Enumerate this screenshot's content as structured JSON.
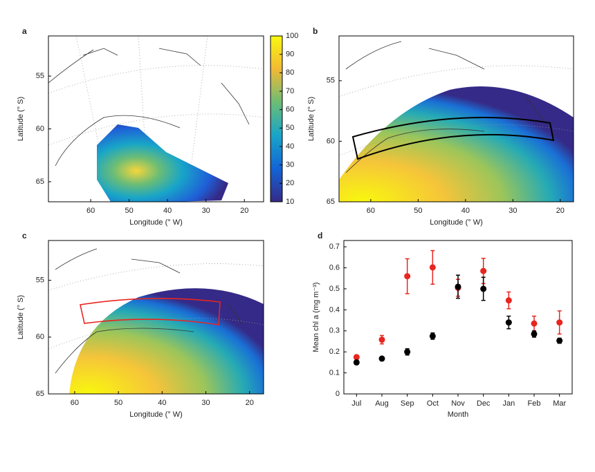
{
  "chart_data": [
    {
      "type": "map",
      "label": "a",
      "xlabel": "Longitude (° W)",
      "ylabel": "Latitude (° S)",
      "xlim": [
        71,
        15
      ],
      "ylim": [
        66.9,
        51.2
      ],
      "xticks": [
        60,
        50,
        40,
        30,
        20
      ],
      "yticks": [
        55,
        60,
        65
      ],
      "colorbar": {
        "lim": [
          10,
          100
        ],
        "ticks": [
          10,
          20,
          30,
          40,
          50,
          60,
          70,
          80,
          90,
          100
        ]
      }
    },
    {
      "type": "map",
      "label": "b",
      "xlabel": "Longitude (° W)",
      "ylabel": "Latitude (° S)",
      "xlim": [
        66.7,
        17.2
      ],
      "ylim": [
        65,
        51.3
      ],
      "xticks": [
        60,
        50,
        40,
        30,
        20
      ],
      "yticks": [
        55,
        60,
        65
      ]
    },
    {
      "type": "map",
      "label": "c",
      "xlabel": "Longitude (° W)",
      "ylabel": "Latitude (° S)",
      "xlim": [
        66,
        16.8
      ],
      "ylim": [
        65,
        51.5
      ],
      "xticks": [
        60,
        50,
        40,
        30,
        20
      ],
      "yticks": [
        55,
        60,
        65
      ]
    },
    {
      "type": "errorbar",
      "label": "d",
      "xlabel": "Month",
      "ylabel": "Mean chl a (mg m⁻³)",
      "categories": [
        "Jul",
        "Aug",
        "Sep",
        "Oct",
        "Nov",
        "Dec",
        "Jan",
        "Feb",
        "Mar"
      ],
      "ylim": [
        0,
        0.73
      ],
      "yticks": [
        0,
        0.1,
        0.2,
        0.3,
        0.4,
        0.5,
        0.6,
        0.7
      ],
      "series": [
        {
          "color": "#e8251f",
          "values": [
            0.175,
            0.258,
            0.56,
            0.602,
            0.505,
            0.585,
            0.445,
            0.335,
            0.34
          ],
          "errors": [
            0.008,
            0.02,
            0.083,
            0.08,
            0.04,
            0.06,
            0.04,
            0.035,
            0.055
          ]
        },
        {
          "color": "#000000",
          "values": [
            0.15,
            0.168,
            0.2,
            0.275,
            0.51,
            0.5,
            0.34,
            0.285,
            0.253
          ],
          "errors": [
            0.01,
            0.006,
            0.015,
            0.015,
            0.055,
            0.055,
            0.03,
            0.015,
            0.012
          ]
        }
      ]
    }
  ]
}
